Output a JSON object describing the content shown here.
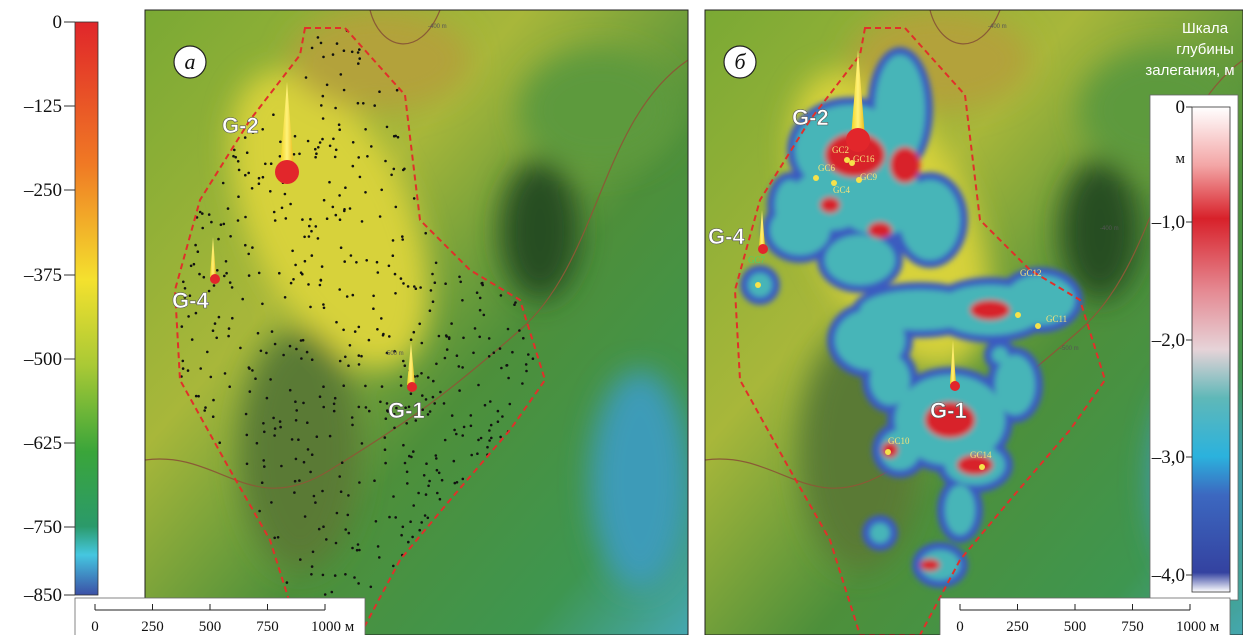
{
  "depth_colorbar": {
    "ticks": [
      "0",
      "–125",
      "–250",
      "–375",
      "–500",
      "–625",
      "–750",
      "–850"
    ]
  },
  "panel_a": {
    "label": "а",
    "wells": [
      "G-2",
      "G-4",
      "G-1"
    ],
    "contours": [
      "-400 m",
      "-500 m"
    ],
    "scale_bar": [
      "0",
      "250",
      "500",
      "750",
      "1000 м"
    ]
  },
  "panel_b": {
    "label": "б",
    "wells": [
      "G-2",
      "G-4",
      "G-1"
    ],
    "gc": [
      "GC2",
      "GC16",
      "GC6",
      "GC9",
      "GC4",
      "GC7",
      "GC12",
      "GC11",
      "GC10",
      "GC14"
    ],
    "contours": [
      "-400 m",
      "-400 m",
      "-500 m"
    ],
    "scale_title": [
      "Шкала",
      "глубины",
      "залегания, м"
    ],
    "scale_unit": "м",
    "scale_ticks": [
      "0",
      "–1,0",
      "–2,0",
      "–3,0",
      "–4,0"
    ],
    "scale_bar": [
      "0",
      "250",
      "500",
      "750",
      "1000 м"
    ]
  }
}
